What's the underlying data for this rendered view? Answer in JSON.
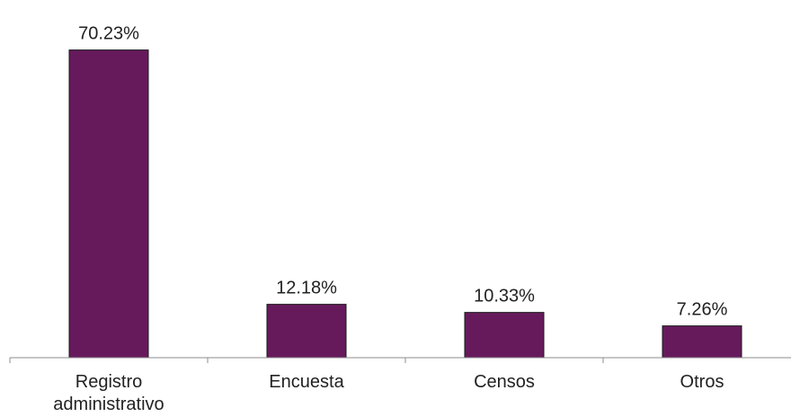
{
  "chart_data": {
    "type": "bar",
    "categories": [
      "Registro administrativo",
      "Encuesta",
      "Censos",
      "Otros"
    ],
    "category_lines": [
      [
        "Registro",
        "administrativo"
      ],
      [
        "Encuesta"
      ],
      [
        "Censos"
      ],
      [
        "Otros"
      ]
    ],
    "values": [
      70.23,
      12.18,
      10.33,
      7.26
    ],
    "data_labels": [
      "70.23%",
      "12.18%",
      "10.33%",
      "7.26%"
    ],
    "title": "",
    "xlabel": "",
    "ylabel": "",
    "ylim": [
      0,
      80
    ],
    "grid": false,
    "legend": "none",
    "bar_color": "#661a5c",
    "bar_edge_color": "#1a1a1a"
  }
}
